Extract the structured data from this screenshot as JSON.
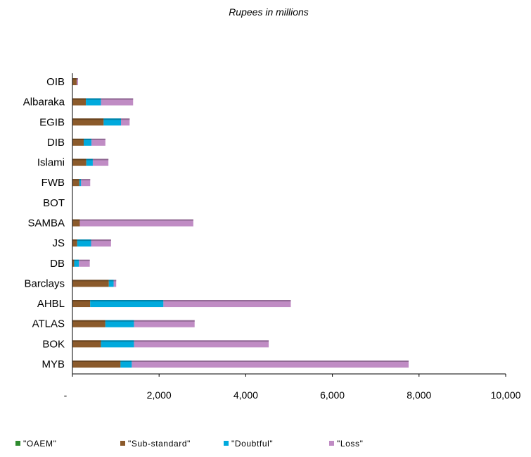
{
  "chart_data": {
    "type": "bar",
    "orientation": "horizontal",
    "stacked": true,
    "title": "Rupees in millions",
    "xlabel": "",
    "ylabel": "",
    "xlim": [
      0,
      10000
    ],
    "x_ticks": [
      0,
      2000,
      4000,
      6000,
      8000,
      10000
    ],
    "x_tick_labels": [
      "-",
      "2,000",
      "4,000",
      "6,000",
      "8,000",
      "10,000"
    ],
    "grid": false,
    "legend_position": "bottom",
    "categories": [
      "OIB",
      "Albaraka",
      "EGIB",
      "DIB",
      "Islami",
      "FWB",
      "BOT",
      "SAMBA",
      "JS",
      "DB",
      "Barclays",
      "AHBL",
      "ATLAS",
      "BOK",
      "MYB"
    ],
    "series": [
      {
        "name": "\"OAEM\"",
        "color": "#2e8b2e",
        "values": [
          0,
          0,
          0,
          0,
          0,
          0,
          0,
          0,
          0,
          0,
          0,
          0,
          0,
          0,
          0
        ]
      },
      {
        "name": "\"Sub-standard\"",
        "color": "#8b5a2b",
        "values": [
          100,
          310,
          720,
          260,
          320,
          160,
          0,
          170,
          110,
          40,
          840,
          410,
          760,
          660,
          1110
        ]
      },
      {
        "name": "\"Doubtful\"",
        "color": "#00aadd",
        "values": [
          0,
          350,
          400,
          180,
          150,
          40,
          0,
          0,
          320,
          110,
          110,
          1690,
          660,
          760,
          260
        ]
      },
      {
        "name": "\"Loss\"",
        "color": "#c08cc4",
        "values": [
          30,
          740,
          200,
          320,
          360,
          210,
          0,
          2620,
          460,
          250,
          60,
          2940,
          1400,
          3110,
          6390
        ]
      }
    ]
  }
}
